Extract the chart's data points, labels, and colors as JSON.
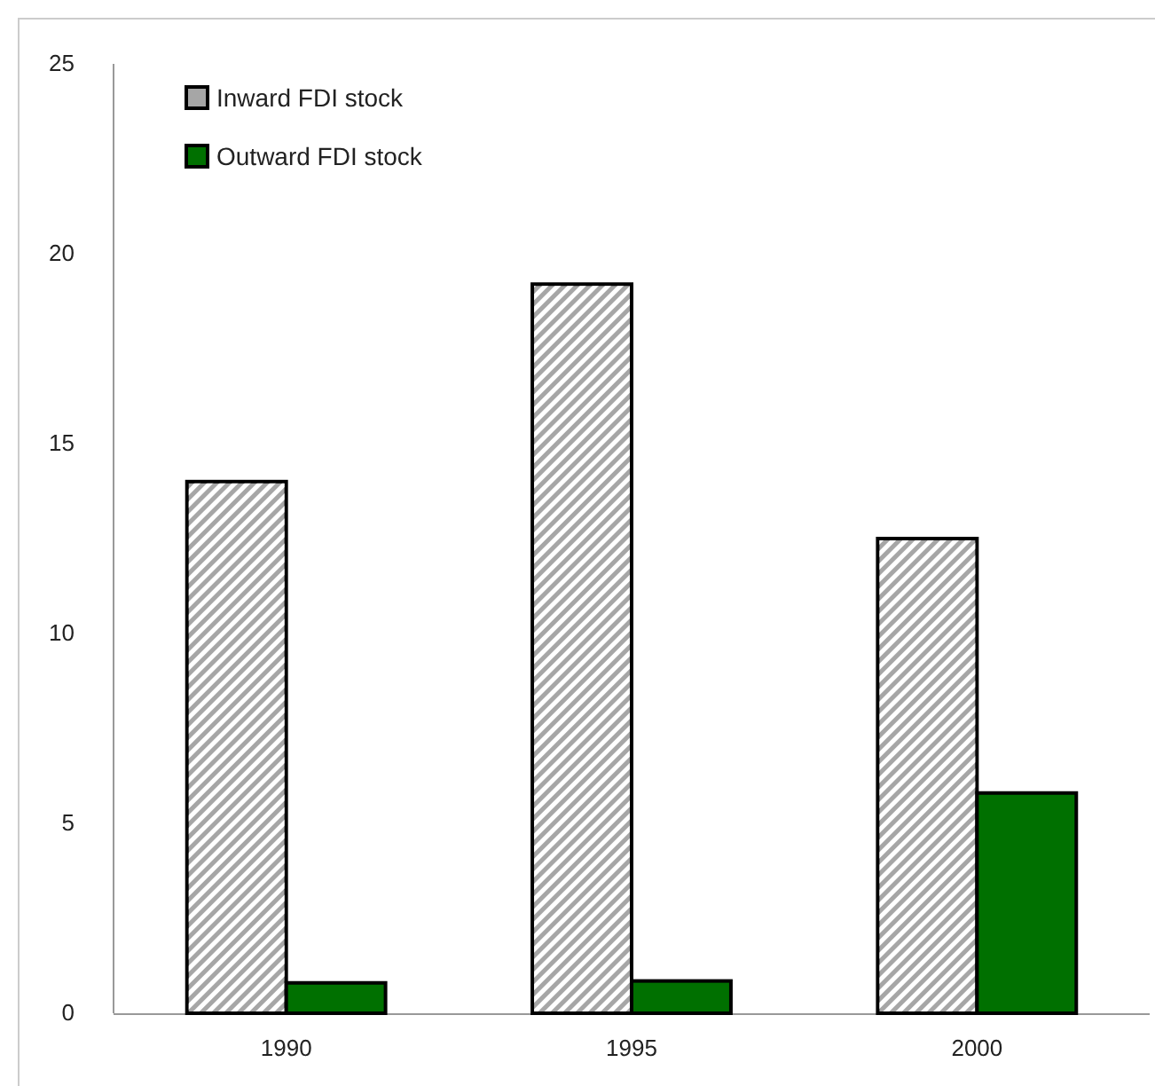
{
  "chart_data": {
    "type": "bar",
    "categories": [
      "1990",
      "1995",
      "2000"
    ],
    "series": [
      {
        "name": "Inward FDI stock",
        "color": "#a6a6a6",
        "values": [
          14.0,
          19.2,
          12.5
        ]
      },
      {
        "name": "Outward FDI stock",
        "color": "#007000",
        "values": [
          0.8,
          0.85,
          5.8
        ]
      }
    ],
    "ylim": [
      0,
      25
    ],
    "yticks": [
      0,
      5,
      10,
      15,
      20,
      25
    ],
    "grid": false,
    "legend": "top left"
  }
}
